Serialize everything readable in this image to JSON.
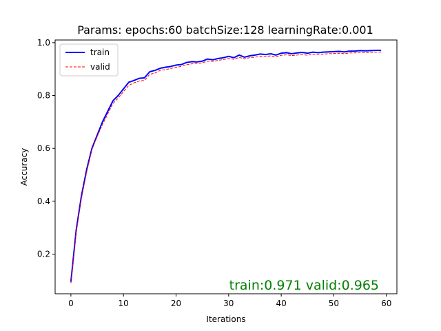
{
  "colors": {
    "train": "#0000ff",
    "valid": "#ff0000",
    "annotation": "#008000"
  },
  "chart_data": {
    "type": "line",
    "title": "Params: epochs:60    batchSize:128    learningRate:0.001",
    "xlabel": "Iterations",
    "ylabel": "Accuracy",
    "xlim": [
      -3,
      62
    ],
    "ylim": [
      0.05,
      1.01
    ],
    "xticks": [
      0,
      10,
      20,
      30,
      40,
      50,
      60
    ],
    "yticks": [
      0.2,
      0.4,
      0.6,
      0.8,
      1.0
    ],
    "xtick_labels": [
      "0",
      "10",
      "20",
      "30",
      "40",
      "50",
      "60"
    ],
    "ytick_labels": [
      "0.2",
      "0.4",
      "0.6",
      "0.8",
      "1.0"
    ],
    "grid": false,
    "legend_position": "top-left",
    "annotation": "train:0.971    valid:0.965",
    "x": [
      0,
      1,
      2,
      3,
      4,
      5,
      6,
      7,
      8,
      9,
      10,
      11,
      12,
      13,
      14,
      15,
      16,
      17,
      18,
      19,
      20,
      21,
      22,
      23,
      24,
      25,
      26,
      27,
      28,
      29,
      30,
      31,
      32,
      33,
      34,
      35,
      36,
      37,
      38,
      39,
      40,
      41,
      42,
      43,
      44,
      45,
      46,
      47,
      48,
      49,
      50,
      51,
      52,
      53,
      54,
      55,
      56,
      57,
      58,
      59
    ],
    "series": [
      {
        "name": "train",
        "style": "solid",
        "values": [
          0.095,
          0.29,
          0.42,
          0.52,
          0.6,
          0.65,
          0.7,
          0.74,
          0.78,
          0.8,
          0.825,
          0.85,
          0.857,
          0.865,
          0.867,
          0.89,
          0.895,
          0.903,
          0.907,
          0.91,
          0.915,
          0.917,
          0.925,
          0.928,
          0.927,
          0.93,
          0.938,
          0.935,
          0.94,
          0.943,
          0.948,
          0.943,
          0.953,
          0.945,
          0.95,
          0.953,
          0.957,
          0.955,
          0.958,
          0.953,
          0.96,
          0.962,
          0.958,
          0.961,
          0.963,
          0.96,
          0.964,
          0.962,
          0.964,
          0.965,
          0.966,
          0.967,
          0.965,
          0.968,
          0.968,
          0.97,
          0.969,
          0.97,
          0.971,
          0.971
        ]
      },
      {
        "name": "valid",
        "style": "dashed",
        "values": [
          0.09,
          0.28,
          0.41,
          0.51,
          0.595,
          0.645,
          0.69,
          0.73,
          0.77,
          0.79,
          0.815,
          0.838,
          0.848,
          0.855,
          0.857,
          0.88,
          0.885,
          0.895,
          0.898,
          0.902,
          0.907,
          0.91,
          0.916,
          0.92,
          0.921,
          0.924,
          0.93,
          0.929,
          0.933,
          0.936,
          0.94,
          0.937,
          0.944,
          0.939,
          0.943,
          0.945,
          0.948,
          0.947,
          0.95,
          0.946,
          0.952,
          0.954,
          0.951,
          0.953,
          0.955,
          0.952,
          0.956,
          0.955,
          0.957,
          0.958,
          0.959,
          0.96,
          0.958,
          0.961,
          0.961,
          0.963,
          0.962,
          0.963,
          0.964,
          0.965
        ]
      }
    ]
  }
}
